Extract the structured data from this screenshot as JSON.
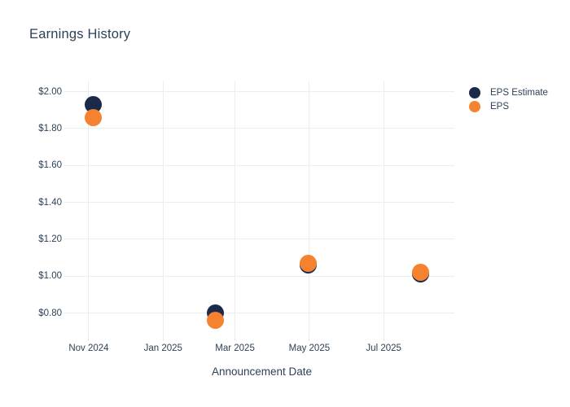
{
  "title": "Earnings History",
  "legend": [
    {
      "label": "EPS Estimate",
      "color": "#1b2a4a"
    },
    {
      "label": "EPS",
      "color": "#f5822f"
    }
  ],
  "colors": {
    "background": "#ffffff",
    "title_text": "#2e4156",
    "axis_text": "#2e4156",
    "gridline": "#e9eef5",
    "eps_estimate": "#1b2a4a",
    "eps": "#f5822f"
  },
  "chart_data": {
    "type": "scatter",
    "title": "Earnings History",
    "xlabel": "Announcement Date",
    "ylabel": "",
    "grid": true,
    "legend_position": "right-top",
    "ylim": [
      0.67,
      2.06
    ],
    "x_range": [
      "2024-10-16",
      "2025-08-28"
    ],
    "y_ticks": [
      {
        "value": 2.0,
        "label": "$2.00"
      },
      {
        "value": 1.8,
        "label": "$1.80"
      },
      {
        "value": 1.6,
        "label": "$1.60"
      },
      {
        "value": 1.4,
        "label": "$1.40"
      },
      {
        "value": 1.2,
        "label": "$1.20"
      },
      {
        "value": 1.0,
        "label": "$1.00"
      },
      {
        "value": 0.8,
        "label": "$0.80"
      }
    ],
    "x_ticks": [
      {
        "date": "2024-11-01",
        "label": "Nov 2024"
      },
      {
        "date": "2025-01-01",
        "label": "Jan 2025"
      },
      {
        "date": "2025-03-01",
        "label": "Mar 2025"
      },
      {
        "date": "2025-05-01",
        "label": "May 2025"
      },
      {
        "date": "2025-07-01",
        "label": "Jul 2025"
      }
    ],
    "series": [
      {
        "name": "EPS Estimate",
        "color": "#1b2a4a",
        "points": [
          {
            "date": "2024-11-05",
            "value": 1.93
          },
          {
            "date": "2025-02-13",
            "value": 0.8
          },
          {
            "date": "2025-04-30",
            "value": 1.06
          },
          {
            "date": "2025-07-31",
            "value": 1.01
          }
        ]
      },
      {
        "name": "EPS",
        "color": "#f5822f",
        "points": [
          {
            "date": "2024-11-05",
            "value": 1.86
          },
          {
            "date": "2025-02-13",
            "value": 0.76
          },
          {
            "date": "2025-04-30",
            "value": 1.07
          },
          {
            "date": "2025-07-31",
            "value": 1.02
          }
        ]
      }
    ]
  }
}
